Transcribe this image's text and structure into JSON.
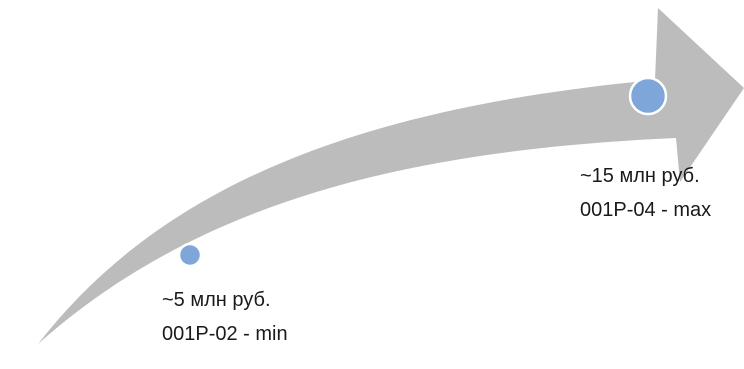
{
  "diagram": {
    "arrow_color": "#bcbcbc",
    "marker_fill": "#7ea6d8",
    "marker_stroke": "#ffffff",
    "milestones": [
      {
        "value_text": "~5 млн руб.",
        "code_text": "001P-02 - min"
      },
      {
        "value_text": "~15 млн руб.",
        "code_text": "001P-04 - max"
      }
    ]
  }
}
